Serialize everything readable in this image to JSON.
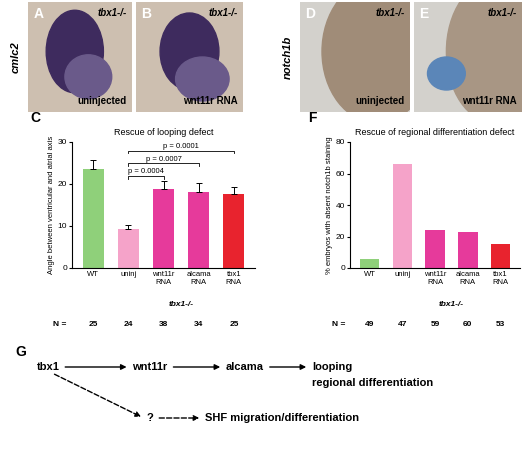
{
  "image_panels": [
    {
      "panel": "A",
      "genotype": "tbx1-/-",
      "condition": "uninjected"
    },
    {
      "panel": "B",
      "genotype": "tbx1-/-",
      "condition": "wnt11r RNA"
    },
    {
      "panel": "D",
      "genotype": "tbx1-/-",
      "condition": "uninjected"
    },
    {
      "panel": "E",
      "genotype": "tbx1-/-",
      "condition": "wnt11r RNA"
    }
  ],
  "stains": [
    {
      "label": "cmlc2",
      "panels": [
        "A",
        "B"
      ]
    },
    {
      "label": "notch1b",
      "panels": [
        "D",
        "E"
      ]
    }
  ],
  "chart_data": [
    {
      "panel": "C",
      "type": "bar",
      "title": "Rescue of looping defect",
      "y_label": "Angle between ventricular and atrial axis",
      "categories": [
        "WT",
        "uninj",
        "wnt11r RNA",
        "alcama RNA",
        "tbx1 RNA"
      ],
      "values": [
        23.5,
        9.3,
        18.9,
        18.1,
        17.6
      ],
      "errors": [
        2.3,
        1.0,
        1.8,
        2.2,
        1.6
      ],
      "colors": [
        "#8fd07a",
        "#f5a3c9",
        "#e63a9b",
        "#e63a9b",
        "#e8232e"
      ],
      "ylim": [
        0,
        30
      ],
      "yticks": [
        0,
        10,
        20,
        30
      ],
      "group": {
        "label": "tbx1-/-",
        "categories": [
          "uninj",
          "wnt11r RNA",
          "alcama RNA",
          "tbx1 RNA"
        ]
      },
      "n_label": "N =",
      "n": [
        25,
        24,
        38,
        34,
        25
      ],
      "annotations": [
        {
          "from": "uninj",
          "to": "wnt11r RNA",
          "text": "p = 0.0004"
        },
        {
          "from": "uninj",
          "to": "alcama RNA",
          "text": "p = 0.0007"
        },
        {
          "from": "uninj",
          "to": "tbx1 RNA",
          "text": "p = 0.0001"
        }
      ]
    },
    {
      "panel": "F",
      "type": "bar",
      "title": "Rescue of regional differentiation defect",
      "y_label": "% embryos with absent notch1b staining",
      "categories": [
        "WT",
        "uninj",
        "wnt11r RNA",
        "alcama RNA",
        "tbx1 RNA"
      ],
      "values": [
        6,
        66,
        24,
        23,
        15
      ],
      "colors": [
        "#8fd07a",
        "#f5a3c9",
        "#e63a9b",
        "#e63a9b",
        "#e8232e"
      ],
      "ylim": [
        0,
        80
      ],
      "yticks": [
        0,
        20,
        40,
        60,
        80
      ],
      "group": {
        "label": "tbx1-/-",
        "categories": [
          "uninj",
          "wnt11r RNA",
          "alcama RNA",
          "tbx1 RNA"
        ]
      },
      "n_label": "N =",
      "n": [
        49,
        47,
        59,
        60,
        53
      ]
    }
  ],
  "diagram": {
    "panel": "G",
    "nodes": [
      {
        "label": "tbx1"
      },
      {
        "label": "wnt11r"
      },
      {
        "label": "alcama"
      },
      {
        "label": "looping"
      },
      {
        "label": "regional differentiation"
      },
      {
        "label": "?"
      },
      {
        "label": "SHF migration/differentiation"
      }
    ],
    "edges": [
      {
        "from": 0,
        "to": 1,
        "style": "solid"
      },
      {
        "from": 1,
        "to": 2,
        "style": "solid"
      },
      {
        "from": 2,
        "to": 3,
        "style": "solid"
      },
      {
        "from": 0,
        "to": 5,
        "style": "dashed"
      },
      {
        "from": 5,
        "to": 6,
        "style": "dashed"
      }
    ]
  }
}
